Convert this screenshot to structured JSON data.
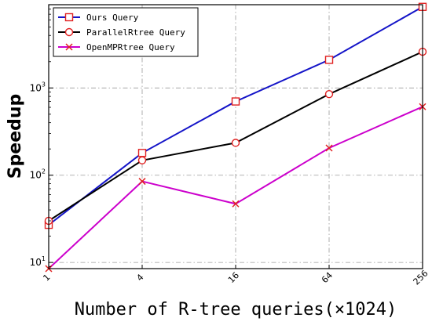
{
  "chart_data": {
    "type": "line",
    "title": "",
    "xlabel": "Number of R-tree queries(×1024)",
    "ylabel": "Speedup",
    "x_scale": "log2",
    "y_scale": "log10",
    "x": [
      1,
      4,
      16,
      64,
      256
    ],
    "xtick_labels": [
      "1",
      "4",
      "16",
      "64",
      "256"
    ],
    "ylim": [
      8.5,
      9000
    ],
    "ytick_labels": [
      {
        "base": "10",
        "exp": "1",
        "value": 10
      },
      {
        "base": "10",
        "exp": "2",
        "value": 100
      },
      {
        "base": "10",
        "exp": "3",
        "value": 1000
      }
    ],
    "grid": true,
    "legend_position": "top-left",
    "series": [
      {
        "name": "Ours Query",
        "color": "#1414c8",
        "marker": "square",
        "values": [
          27,
          180,
          700,
          2100,
          8500
        ]
      },
      {
        "name": "ParallelRtree Query",
        "color": "#000000",
        "marker": "circle",
        "values": [
          30,
          148,
          235,
          850,
          2600
        ]
      },
      {
        "name": "OpenMPRtree Query",
        "color": "#cc00cc",
        "marker": "x",
        "values": [
          8.5,
          85,
          47,
          205,
          610
        ]
      }
    ]
  }
}
